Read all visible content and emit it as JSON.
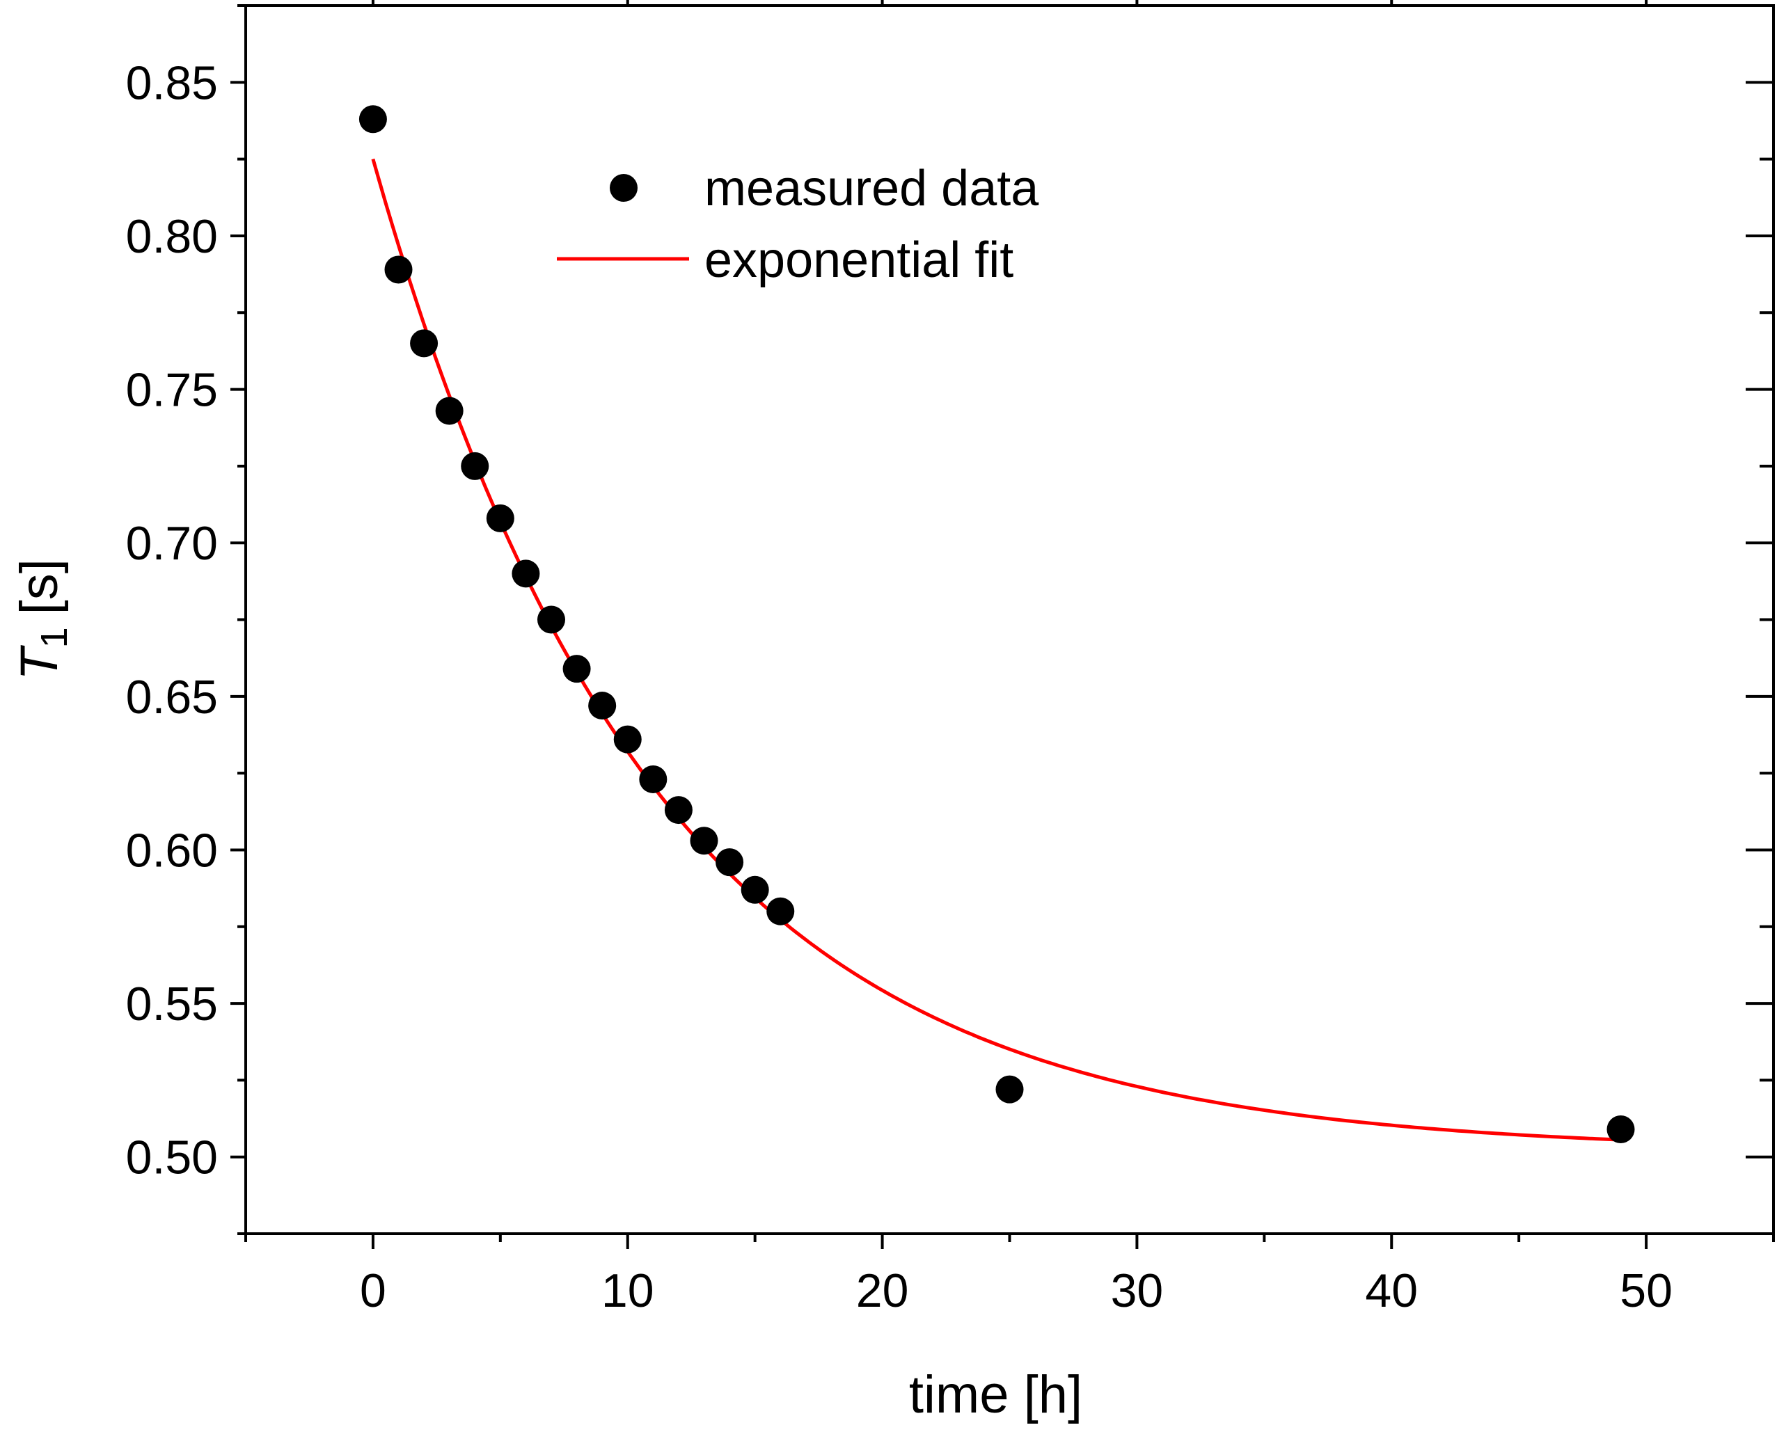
{
  "chart_data": {
    "type": "scatter",
    "title": "",
    "xlabel": "time [h]",
    "ylabel_main": "T",
    "ylabel_sub": "1",
    "ylabel_unit": "[s]",
    "xlim": [
      -5,
      55
    ],
    "ylim": [
      0.475,
      0.875
    ],
    "x_ticks": [
      0,
      10,
      20,
      30,
      40,
      50
    ],
    "x_tick_labels": [
      "0",
      "10",
      "20",
      "30",
      "40",
      "50"
    ],
    "x_minor_ticks": [
      -5,
      5,
      15,
      25,
      35,
      45,
      55
    ],
    "y_ticks": [
      0.5,
      0.55,
      0.6,
      0.65,
      0.7,
      0.75,
      0.8,
      0.85
    ],
    "y_tick_labels": [
      "0.50",
      "0.55",
      "0.60",
      "0.65",
      "0.70",
      "0.75",
      "0.80",
      "0.85"
    ],
    "y_minor_ticks": [
      0.475,
      0.525,
      0.575,
      0.625,
      0.675,
      0.725,
      0.775,
      0.825,
      0.875
    ],
    "grid": false,
    "legend_position": "top-center",
    "series": [
      {
        "name": "measured data",
        "kind": "scatter",
        "color": "#000000",
        "x": [
          0,
          1,
          2,
          3,
          4,
          5,
          6,
          7,
          8,
          9,
          10,
          11,
          12,
          13,
          14,
          15,
          16,
          25,
          49
        ],
        "y": [
          0.838,
          0.789,
          0.765,
          0.743,
          0.725,
          0.708,
          0.69,
          0.675,
          0.659,
          0.647,
          0.636,
          0.623,
          0.613,
          0.603,
          0.596,
          0.587,
          0.58,
          0.522,
          0.509
        ]
      },
      {
        "name": "exponential fit",
        "kind": "line",
        "color": "#ff0000",
        "model": {
          "y0": 0.5018,
          "A": 0.3232,
          "tau": 11.0
        },
        "x_range": [
          0,
          49
        ]
      }
    ]
  }
}
